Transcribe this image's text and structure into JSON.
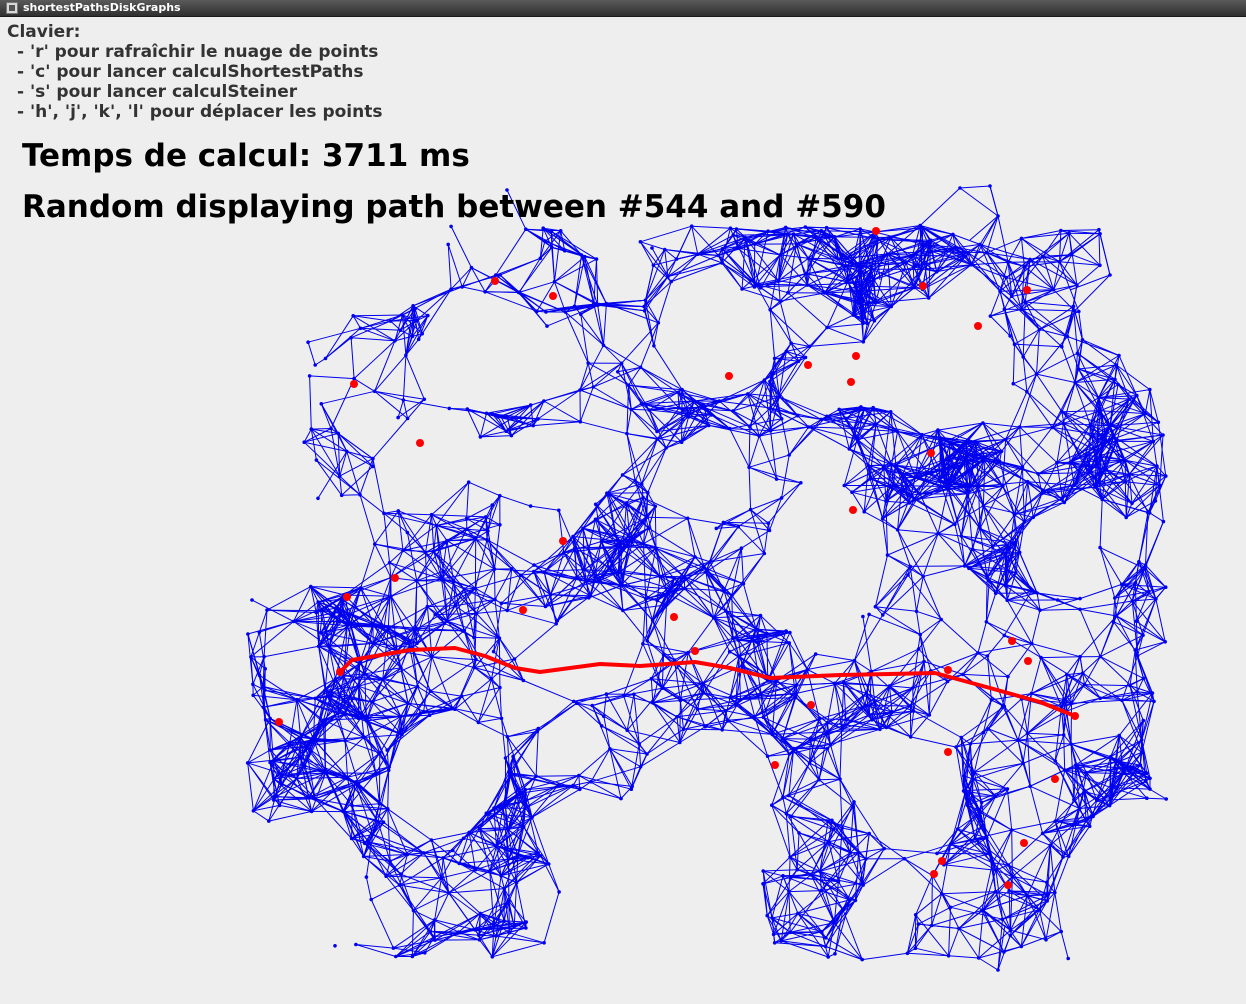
{
  "window": {
    "title": "shortestPathsDiskGraphs"
  },
  "help": {
    "heading": "Clavier:",
    "lines": [
      "- 'r' pour rafraîchir le nuage de points",
      "- 'c' pour lancer calculShortestPaths",
      "- 's' pour lancer calculSteiner",
      "- 'h', 'j', 'k', 'l' pour déplacer les points"
    ]
  },
  "status": {
    "compute_time": "Temps de calcul: 3711 ms",
    "path_info": "Random displaying path between #544 and #590"
  },
  "colors": {
    "background": "#eeeeee",
    "edge": "#0000ee",
    "point": "#0000ee",
    "highlight": "#ff0000"
  }
}
